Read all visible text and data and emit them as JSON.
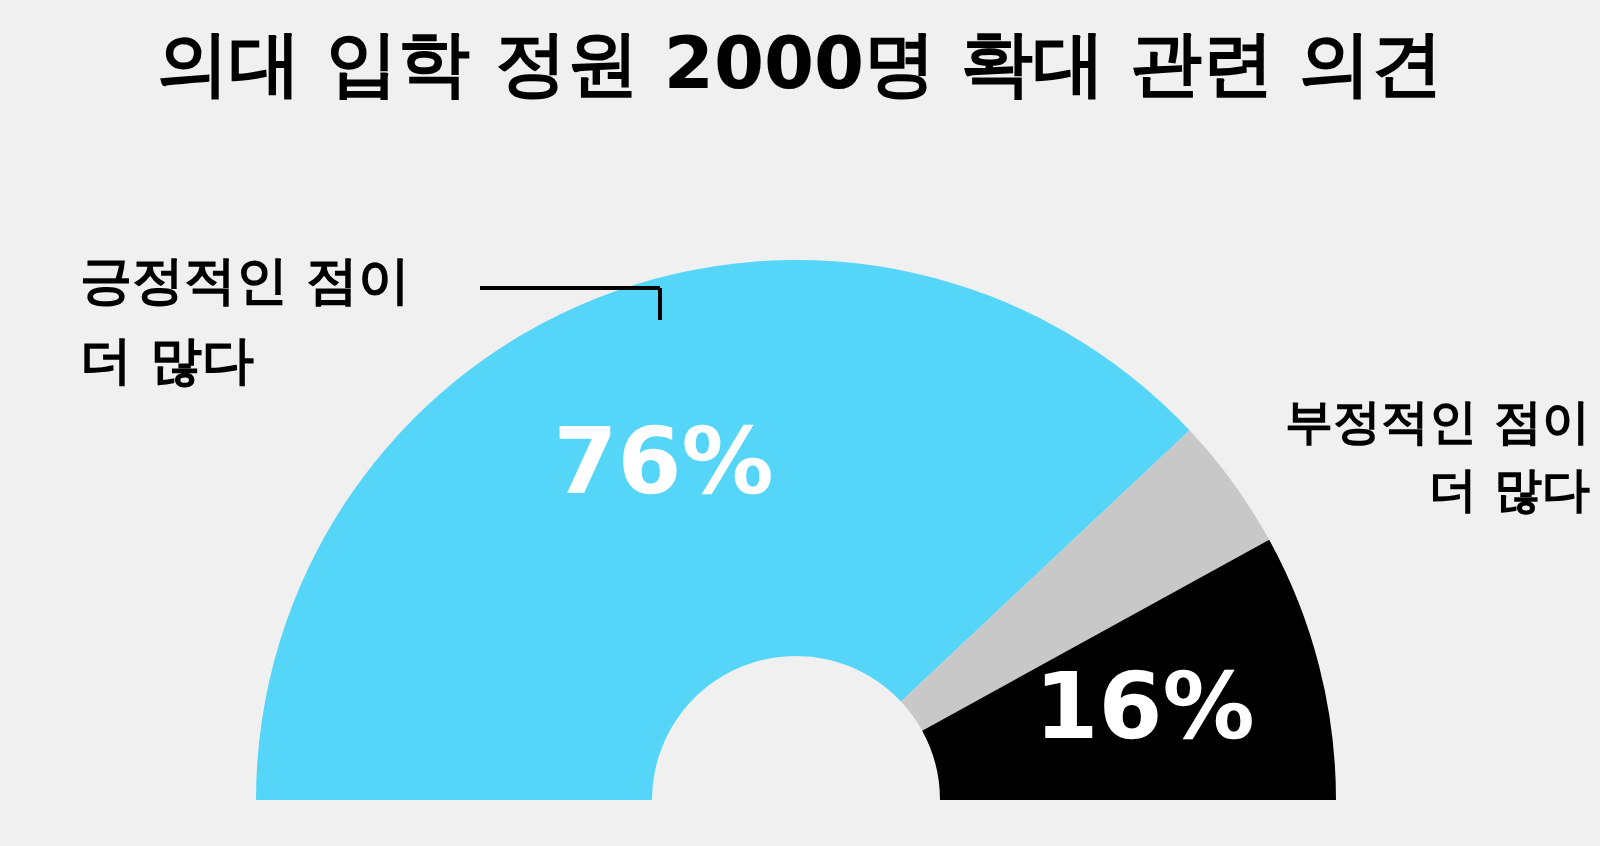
{
  "chart_data": {
    "type": "donut",
    "title": "의대 입학 정원 2000명 확대 관련 의견",
    "categories": [
      "긍정적인 점이 더 많다",
      null,
      "부정적인 점이 더 많다"
    ],
    "values": [
      76,
      8,
      16
    ],
    "colors": [
      "#55d5f8",
      "#c8c8c8",
      "#000000"
    ],
    "value_labels": [
      "76%",
      null,
      "16%"
    ]
  }
}
